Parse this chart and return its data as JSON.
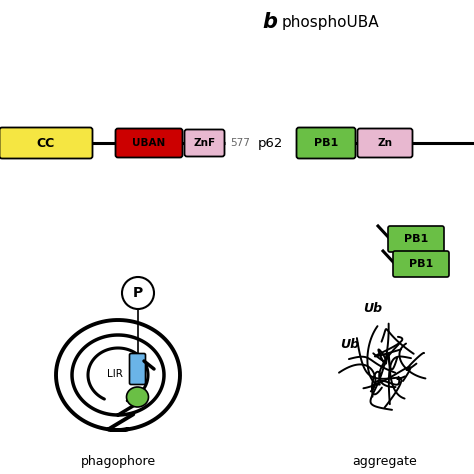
{
  "bg_color": "#ffffff",
  "label_b": "b",
  "label_phosphoUBA": "phosphoUBA",
  "label_577": "577",
  "label_p62": "p62",
  "label_phagophore": "phagophore",
  "label_aggregate": "aggregate",
  "label_LIR": "LIR",
  "label_P": "P",
  "label_Ub1": "Ub",
  "label_Ub2": "Ub",
  "label_PB1": "PB1",
  "label_PB1b": "PB1",
  "label_CC": "CC",
  "label_UBAN": "UBAN",
  "label_ZnF": "ZnF",
  "label_Zn": "Zn",
  "color_CC": "#f5e642",
  "color_UBAN": "#cc0000",
  "color_ZnF": "#e8b8d0",
  "color_PB1": "#6abf45",
  "color_Zn": "#e8b8d0",
  "color_LIR_rect": "#6ab4e8",
  "color_green_oval": "#6abf45",
  "color_circle_bg": "#ffffff",
  "lw_backbone": 2.2,
  "lw_phagophore": 2.5
}
